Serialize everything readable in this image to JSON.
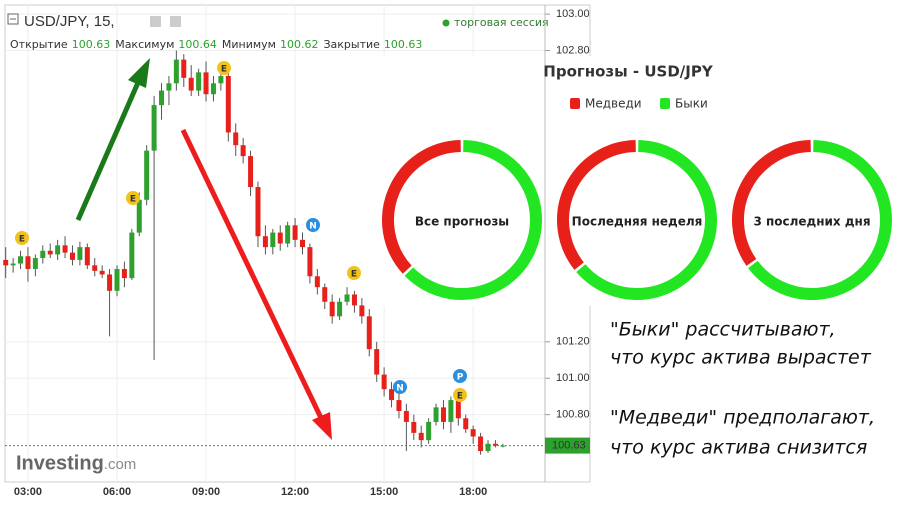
{
  "chart_data": [
    {
      "type": "candlestick",
      "header": {
        "symbol": "USD/JPY, 15,",
        "session": "торговая сессия",
        "stats": [
          {
            "label": "Открытие",
            "value": 100.63
          },
          {
            "label": "Максимум",
            "value": 100.64
          },
          {
            "label": "Минимум",
            "value": 100.62
          },
          {
            "label": "Закрытие",
            "value": 100.63
          }
        ]
      },
      "categories": [
        null,
        null,
        null,
        "03:00",
        null,
        null,
        null,
        null,
        null,
        null,
        null,
        null,
        null,
        null,
        null,
        "06:00",
        null,
        null,
        null,
        null,
        null,
        null,
        null,
        null,
        null,
        null,
        null,
        "09:00",
        null,
        null,
        null,
        null,
        null,
        null,
        null,
        null,
        null,
        null,
        null,
        "12:00",
        null,
        null,
        null,
        null,
        null,
        null,
        null,
        null,
        null,
        null,
        null,
        "15:00",
        null,
        null,
        null,
        null,
        null,
        null,
        null,
        null,
        null,
        null,
        null,
        "18:00",
        null,
        null,
        null,
        null
      ],
      "open": [
        101.65,
        101.62,
        101.63,
        101.67,
        101.6,
        101.66,
        101.7,
        101.68,
        101.73,
        101.69,
        101.65,
        101.72,
        101.62,
        101.59,
        101.57,
        101.48,
        101.6,
        101.55,
        101.8,
        101.98,
        102.25,
        102.5,
        102.58,
        102.62,
        102.75,
        102.65,
        102.58,
        102.68,
        102.56,
        102.62,
        102.66,
        102.35,
        102.28,
        102.22,
        102.05,
        101.78,
        101.72,
        101.8,
        101.74,
        101.84,
        101.76,
        101.72,
        101.56,
        101.5,
        101.42,
        101.34,
        101.42,
        101.46,
        101.4,
        101.34,
        101.16,
        101.02,
        100.94,
        100.88,
        100.82,
        100.76,
        100.7,
        100.66,
        100.76,
        100.84,
        100.76,
        100.88,
        100.78,
        100.72,
        100.68,
        100.6,
        100.64,
        100.63
      ],
      "high": [
        101.72,
        101.66,
        101.7,
        101.72,
        101.68,
        101.73,
        101.74,
        101.76,
        101.78,
        101.73,
        101.75,
        101.74,
        101.66,
        101.62,
        101.6,
        101.62,
        101.64,
        101.82,
        102.02,
        102.28,
        102.55,
        102.62,
        102.66,
        102.8,
        102.78,
        102.72,
        102.7,
        102.74,
        102.66,
        102.7,
        102.68,
        102.4,
        102.32,
        102.25,
        102.08,
        101.84,
        101.82,
        101.84,
        101.86,
        101.88,
        101.8,
        101.74,
        101.6,
        101.52,
        101.46,
        101.44,
        101.5,
        101.48,
        101.44,
        101.38,
        101.2,
        101.06,
        100.98,
        100.92,
        100.86,
        100.8,
        100.74,
        100.78,
        100.86,
        100.88,
        100.9,
        100.9,
        100.8,
        100.74,
        100.7,
        100.66,
        100.66,
        100.64
      ],
      "low": [
        101.55,
        101.58,
        101.6,
        101.53,
        101.56,
        101.63,
        101.66,
        101.65,
        101.66,
        101.62,
        101.62,
        101.6,
        101.56,
        101.55,
        101.23,
        101.45,
        101.5,
        101.54,
        101.78,
        101.95,
        101.1,
        102.42,
        102.5,
        102.58,
        102.6,
        102.55,
        102.55,
        102.52,
        102.52,
        102.58,
        102.3,
        102.22,
        102.18,
        102.0,
        101.72,
        101.68,
        101.68,
        101.7,
        101.72,
        101.72,
        101.68,
        101.52,
        101.46,
        101.38,
        101.3,
        101.32,
        101.4,
        101.36,
        101.3,
        101.12,
        100.98,
        100.9,
        100.84,
        100.78,
        100.6,
        100.66,
        100.62,
        100.64,
        100.74,
        100.72,
        100.7,
        100.74,
        100.7,
        100.64,
        100.58,
        100.59,
        100.62,
        100.62
      ],
      "close": [
        101.62,
        101.63,
        101.67,
        101.6,
        101.66,
        101.7,
        101.68,
        101.73,
        101.69,
        101.65,
        101.72,
        101.62,
        101.59,
        101.57,
        101.48,
        101.6,
        101.55,
        101.8,
        101.98,
        102.25,
        102.5,
        102.58,
        102.62,
        102.75,
        102.65,
        102.58,
        102.68,
        102.56,
        102.62,
        102.66,
        102.35,
        102.28,
        102.22,
        102.05,
        101.78,
        101.72,
        101.8,
        101.74,
        101.84,
        101.76,
        101.72,
        101.56,
        101.5,
        101.42,
        101.34,
        101.42,
        101.46,
        101.4,
        101.34,
        101.16,
        101.02,
        100.94,
        100.88,
        100.82,
        100.76,
        100.7,
        100.66,
        100.76,
        100.84,
        100.76,
        100.88,
        100.78,
        100.72,
        100.68,
        100.6,
        100.64,
        100.63,
        100.63
      ],
      "up_color": "#2ea02e",
      "down_color": "#e8201a",
      "ylim": [
        100.43,
        103.05
      ],
      "yticks": [
        {
          "value": 103,
          "label": "103.00"
        },
        {
          "value": 102.8,
          "label": "102.80"
        },
        {
          "value": 101.2,
          "label": "101.20"
        },
        {
          "value": 101,
          "label": "101.00"
        },
        {
          "value": 100.8,
          "label": "100.80"
        }
      ],
      "last_price": 100.63,
      "grid": true,
      "events": [
        "E",
        "E",
        "E",
        "N",
        "E",
        "N",
        "P",
        "E"
      ],
      "watermark": [
        "Investing",
        ".com"
      ],
      "annotations": [
        "\"Быки\" рассчитывают,",
        "что курс актива вырастет",
        "\"Медведи\" предполагают,",
        "что курс актива снизится"
      ]
    },
    {
      "type": "donut",
      "title": "Прогнозы - USD/JPY",
      "categories": [
        "Все прогнозы",
        "Последняя неделя",
        "3 последних дня"
      ],
      "series": [
        {
          "name": "Медведи",
          "color": "#e8201a",
          "values": [
            37,
            36,
            35
          ]
        },
        {
          "name": "Быки",
          "color": "#22e622",
          "values": [
            63,
            64,
            65
          ]
        }
      ]
    }
  ]
}
